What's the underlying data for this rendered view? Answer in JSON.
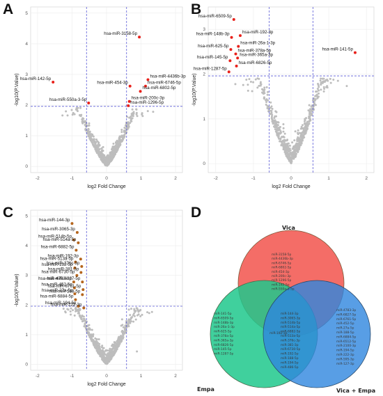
{
  "panels": {
    "A": {
      "letter": "A"
    },
    "B": {
      "letter": "B"
    },
    "C": {
      "letter": "C"
    },
    "D": {
      "letter": "D"
    }
  },
  "chart_data": [
    {
      "id": "A",
      "type": "scatter",
      "xlabel": "log2 Fold Change",
      "ylabel": "-log10(P.Value)",
      "xlim": [
        -2.2,
        2.2
      ],
      "ylim": [
        -0.2,
        5.2
      ],
      "xticks": [
        -2,
        -1,
        0,
        1,
        2
      ],
      "yticks": [
        0,
        1,
        2,
        3,
        4,
        5
      ],
      "thresholds": {
        "x": [
          -0.58,
          0.58
        ],
        "y": 1.96
      },
      "grid": true,
      "highlight_color": "#e8211b",
      "background_color": "#bdbdbd",
      "labeled": [
        {
          "label": "hsa-miR-3158-5p",
          "x": 0.95,
          "y": 4.22
        },
        {
          "label": "hsa-miR-4436b-3p",
          "x": 1.2,
          "y": 2.83
        },
        {
          "label": "hsa-miR-142-5p",
          "x": -1.55,
          "y": 2.75
        },
        {
          "label": "hsa-miR-454-3p",
          "x": 0.68,
          "y": 2.62
        },
        {
          "label": "hsa-miR-6746-5p",
          "x": 1.13,
          "y": 2.62
        },
        {
          "label": "hsa-miR-6802-5p",
          "x": 0.98,
          "y": 2.45
        },
        {
          "label": "hsa-miR-550a-3-5p",
          "x": -0.52,
          "y": 2.07
        },
        {
          "label": "hsa-miR-200c-3p",
          "x": 0.66,
          "y": 2.12
        },
        {
          "label": "hsa-miR-1296-5p",
          "x": 0.63,
          "y": 1.98
        }
      ]
    },
    {
      "id": "B",
      "type": "scatter",
      "xlabel": "log2 Fold Change",
      "ylabel": "-log10(P.Value)",
      "xlim": [
        -2.2,
        2.2
      ],
      "ylim": [
        -0.2,
        3.5
      ],
      "xticks": [
        -2,
        -1,
        0,
        1,
        2
      ],
      "yticks": [
        0,
        1,
        2,
        3
      ],
      "thresholds": {
        "x": [
          -0.58,
          0.58
        ],
        "y": 1.96
      },
      "grid": true,
      "highlight_color": "#e8211b",
      "background_color": "#bdbdbd",
      "labeled": [
        {
          "label": "hsa-miR-6509-5p",
          "x": -1.52,
          "y": 3.22
        },
        {
          "label": "hsa-miR-148b-3p",
          "x": -1.58,
          "y": 2.82
        },
        {
          "label": "hsa-miR-192-3p",
          "x": -1.35,
          "y": 2.86
        },
        {
          "label": "hsa-miR-26a-1-3p",
          "x": -1.4,
          "y": 2.62
        },
        {
          "label": "hsa-miR-625-5p",
          "x": -1.6,
          "y": 2.55
        },
        {
          "label": "hsa-miR-378a-5p",
          "x": -1.47,
          "y": 2.45
        },
        {
          "label": "hsa-miR-145-5p",
          "x": -1.62,
          "y": 2.3
        },
        {
          "label": "hsa-miR-365a-3p",
          "x": -1.42,
          "y": 2.36
        },
        {
          "label": "hsa-miR-6826-5p",
          "x": -1.45,
          "y": 2.18
        },
        {
          "label": "hsa-miR-1287-5p",
          "x": -1.65,
          "y": 2.05
        },
        {
          "label": "hsa-miR-141-5p",
          "x": 1.7,
          "y": 2.48
        }
      ]
    },
    {
      "id": "C",
      "type": "scatter",
      "xlabel": "log2 Fold Change",
      "ylabel": "-log10(P.Value)",
      "xlim": [
        -2.2,
        2.2
      ],
      "ylim": [
        -0.2,
        5.2
      ],
      "xticks": [
        -2,
        -1,
        0,
        1,
        2
      ],
      "yticks": [
        0,
        1,
        2,
        3,
        4,
        5
      ],
      "thresholds": {
        "x": [
          -0.58,
          0.58
        ],
        "y": 1.96
      },
      "grid": true,
      "highlight_color": "#b5651d",
      "background_color": "#bdbdbd",
      "labeled": [
        {
          "label": "hsa-miR-144-3p",
          "x": -1.0,
          "y": 4.75
        },
        {
          "label": "hsa-miR-3065-3p",
          "x": -0.85,
          "y": 4.45
        },
        {
          "label": "hsa-miR-514b-5p",
          "x": -0.95,
          "y": 4.2
        },
        {
          "label": "hsa-miR-514a-5p",
          "x": -0.82,
          "y": 4.1
        },
        {
          "label": "hsa-miR-6882-5p",
          "x": -0.88,
          "y": 3.85
        },
        {
          "label": "hsa-miR-192-3p",
          "x": -0.75,
          "y": 3.55
        },
        {
          "label": "hsa-miR-513a-5p",
          "x": -0.9,
          "y": 3.45
        },
        {
          "label": "hsa-miR-376c-3p",
          "x": -0.72,
          "y": 3.3
        },
        {
          "label": "hsa-miR-192-5p",
          "x": -0.92,
          "y": 3.25
        },
        {
          "label": "hsa-miR-381-3p",
          "x": -0.74,
          "y": 3.1
        },
        {
          "label": "hsa-miR-6730-5p",
          "x": -0.86,
          "y": 3.0
        },
        {
          "label": "hsa-miR-4783-3p",
          "x": -0.95,
          "y": 2.78
        },
        {
          "label": "hsa-miR-6827-5p",
          "x": -0.7,
          "y": 2.78
        },
        {
          "label": "hsa-miR-452-5p",
          "x": -0.93,
          "y": 2.58
        },
        {
          "label": "hsa-miR-6761-5p",
          "x": -0.68,
          "y": 2.52
        },
        {
          "label": "hsa-miR-27a-5p",
          "x": -0.92,
          "y": 2.38
        },
        {
          "label": "hsa-miR-188-5p",
          "x": -0.7,
          "y": 2.35
        },
        {
          "label": "hsa-miR-6884-5p",
          "x": -0.9,
          "y": 2.18
        },
        {
          "label": "hsa-miR-194-5p",
          "x": -0.82,
          "y": 1.96
        },
        {
          "label": "hsa-miR-222-3p",
          "x": -0.66,
          "y": 1.9
        }
      ]
    }
  ],
  "venn": {
    "sets": [
      {
        "name": "Vica",
        "color": "#f2544c"
      },
      {
        "name": "Empa",
        "color": "#1ec88c"
      },
      {
        "name": "Vica + Empa",
        "color": "#2e86de"
      }
    ],
    "vica_only": [
      "miR-3158-5p",
      "miR-4436b-3p",
      "miR-6746-5p",
      "miR-6802-5p",
      "miR-454-3p",
      "miR-200c-3p",
      "miR-1296-5p",
      "miR-142-5p",
      "miR-550a-3-5p"
    ],
    "empa_only": [
      "miR-141-5p",
      "miR-6509-5p",
      "miR-148b-3p",
      "miR-26a-1-3p",
      "miR-625-5p",
      "miR-378a-5p",
      "miR-365a-3p",
      "miR-6826-5p",
      "miR-145-5p",
      "miR-1287-5p"
    ],
    "empa_combo": [
      "miR-144-3p",
      "miR-3065-3p",
      "miR-514b-5p",
      "miR-514a-5p",
      "miR-6882-5p",
      "miR-513a-5p",
      "miR-376c-3p",
      "miR-381-3p",
      "miR-6730-5p",
      "miR-192-5p",
      "miR-188-5p",
      "miR-194-5p",
      "miR-486-5p"
    ],
    "combo_only": [
      "miR-4783-3p",
      "miR-6827-5p",
      "miR-6761-5p",
      "miR-452-5p",
      "miR-27a-5p",
      "miR-188-5p",
      "miR-6884-5p",
      "miR-6512-5p",
      "miR-2100-3p",
      "miR-194-5p",
      "miR-222-3p",
      "miR-595-3p",
      "miR-127-3p"
    ],
    "shared_center": "miR-192-3p"
  }
}
